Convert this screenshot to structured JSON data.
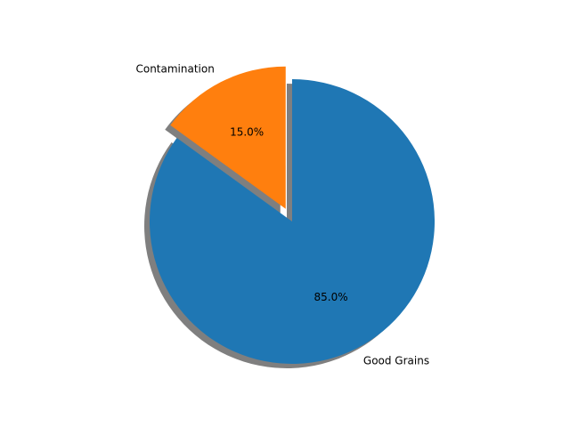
{
  "chart_data": {
    "type": "pie",
    "title": "",
    "slices": [
      {
        "label": "Contamination",
        "value": 15.0,
        "pct_label": "15.0%",
        "color": "#ff7f0e",
        "exploded": true
      },
      {
        "label": "Good Grains",
        "value": 85.0,
        "pct_label": "85.0%",
        "color": "#1f77b4",
        "exploded": false
      }
    ],
    "start_angle_deg": 90,
    "direction": "counterclockwise",
    "shadow": true,
    "legend": "none"
  }
}
